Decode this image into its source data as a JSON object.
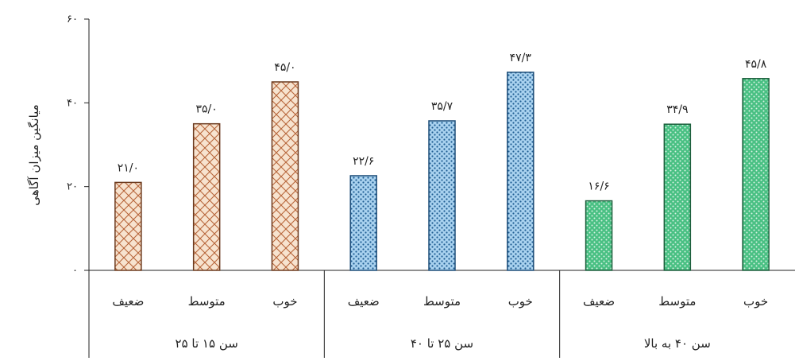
{
  "chart_data": {
    "type": "bar",
    "title": "",
    "ylabel": "میانگین میزان آگاهی",
    "ylim": [
      0,
      60
    ],
    "yticks": [
      0,
      20,
      40,
      60
    ],
    "ytick_labels": [
      "۰",
      "۲۰",
      "۴۰",
      "۶۰"
    ],
    "grid": false,
    "legend": "none",
    "groups": [
      {
        "name": "سن ۱۵ تا ۲۵",
        "color": "#f4d9c0",
        "edge": "#6b3a1e",
        "pattern": "brick",
        "categories": [
          "خوب",
          "متوسط",
          "ضعیف"
        ],
        "values": [
          45.0,
          35.0,
          21.0
        ],
        "labels": [
          "۴۵/۰",
          "۳۵/۰",
          "۲۱/۰"
        ]
      },
      {
        "name": "سن ۲۵ تا ۴۰",
        "color": "#8fc3e8",
        "edge": "#1f4e79",
        "pattern": "dots",
        "categories": [
          "خوب",
          "متوسط",
          "ضعیف"
        ],
        "values": [
          47.3,
          35.7,
          22.6
        ],
        "labels": [
          "۴۷/۳",
          "۳۵/۷",
          "۲۲/۶"
        ]
      },
      {
        "name": "سن ۴۰ به بالا",
        "color": "#3fb37a",
        "edge": "#1d5e3c",
        "pattern": "dots",
        "categories": [
          "خوب",
          "متوسط",
          "ضعیف"
        ],
        "values": [
          45.8,
          34.9,
          16.6
        ],
        "labels": [
          "۴۵/۸",
          "۳۴/۹",
          "۱۶/۶"
        ]
      }
    ]
  }
}
